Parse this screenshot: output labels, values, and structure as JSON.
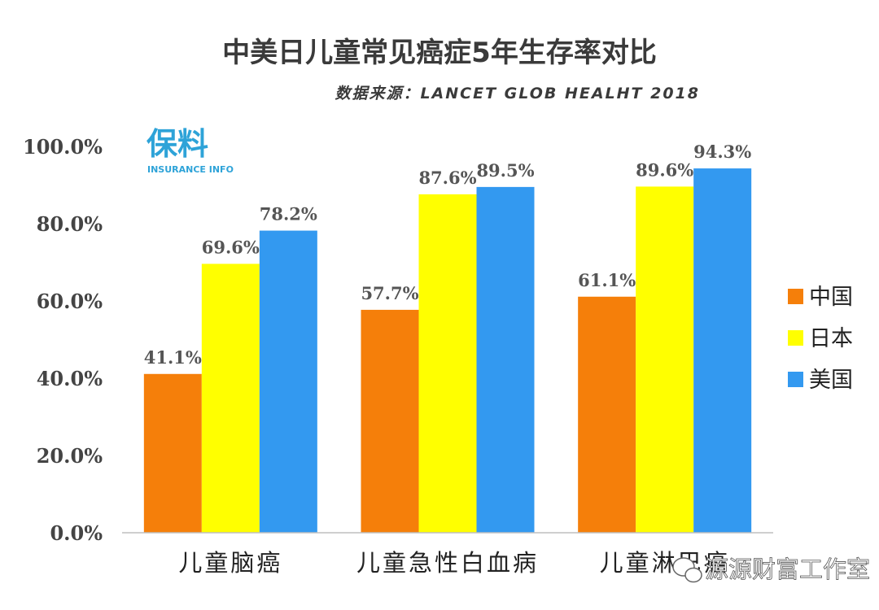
{
  "chart_data": {
    "type": "bar",
    "title": "中美日儿童常见癌症5年生存率对比",
    "subtitle": "数据来源：LANCET GLOB HEALHT 2018",
    "categories": [
      "儿童脑癌",
      "儿童急性白血病",
      "儿童淋巴癌"
    ],
    "series": [
      {
        "name": "中国",
        "color": "#f57f0a",
        "values": [
          41.1,
          57.7,
          61.1
        ],
        "labels": [
          "41.1%",
          "57.7%",
          "61.1%"
        ]
      },
      {
        "name": "日本",
        "color": "#ffff00",
        "values": [
          69.6,
          87.6,
          89.6
        ],
        "labels": [
          "69.6%",
          "87.6%",
          "89.6%"
        ]
      },
      {
        "name": "美国",
        "color": "#3399f0",
        "values": [
          78.2,
          89.5,
          94.3
        ],
        "labels": [
          "78.2%",
          "89.5%",
          "94.3%"
        ]
      }
    ],
    "ylim": [
      0,
      100
    ],
    "yticks": [
      0,
      20,
      40,
      60,
      80,
      100
    ],
    "ytick_labels": [
      "0.0%",
      "20.0%",
      "40.0%",
      "60.0%",
      "80.0%",
      "100.0%"
    ],
    "xlabel": "",
    "ylabel": "",
    "grid": false,
    "legend": "right"
  },
  "logo": {
    "main": "保料",
    "sub": "INSURANCE INFO"
  },
  "watermark": {
    "text": "源源财富工作室"
  }
}
